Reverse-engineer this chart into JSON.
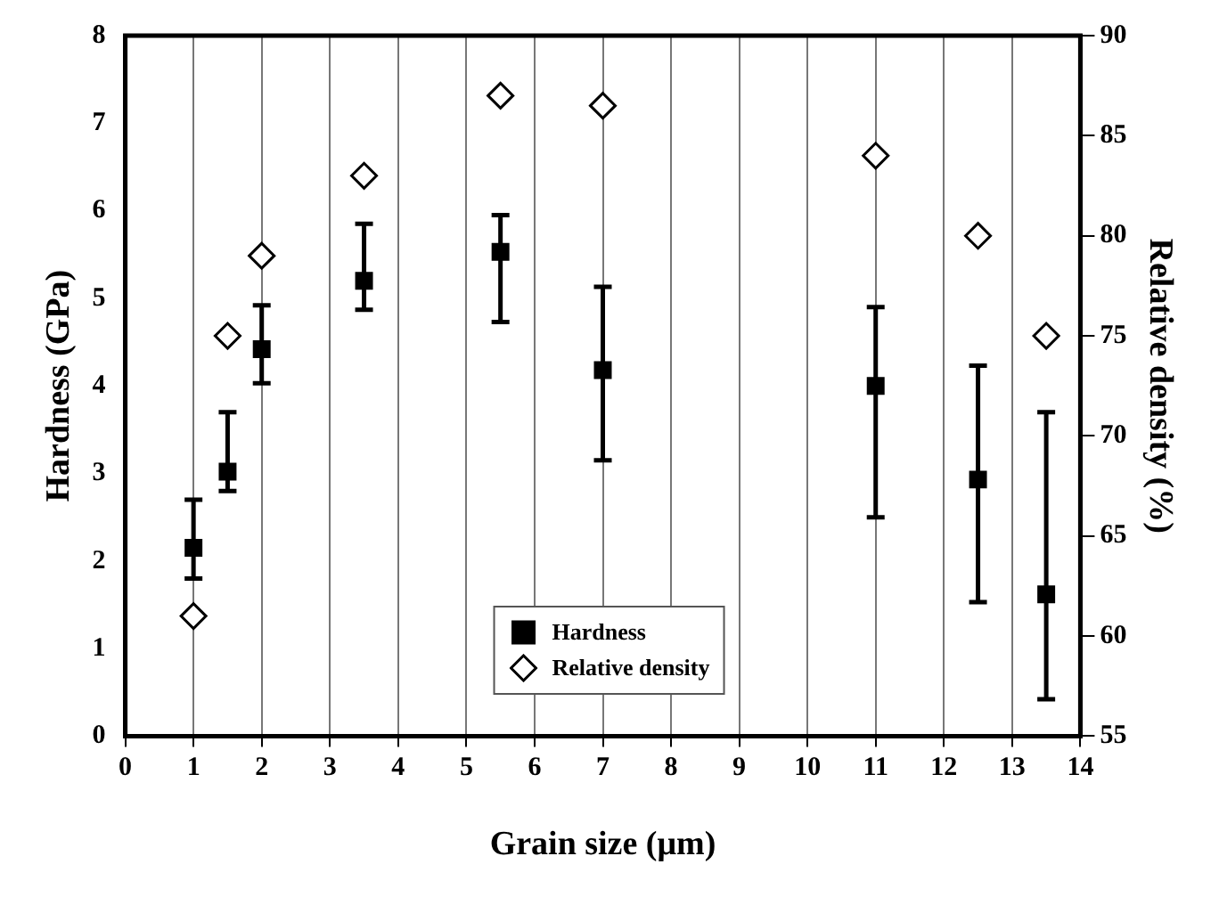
{
  "chart_data": {
    "type": "scatter",
    "xlabel": "Grain size (μm)",
    "ylabel": "Hardness (GPa)",
    "y2label": "Relative density (%)",
    "x": [
      1,
      1.5,
      2,
      3.5,
      5.5,
      7,
      11,
      12.5,
      13.5
    ],
    "series": [
      {
        "name": "Hardness",
        "color": "#000000",
        "marker": "square",
        "values": [
          2.15,
          3.02,
          4.42,
          5.2,
          5.53,
          4.18,
          4.0,
          2.93,
          1.62
        ],
        "errors": [
          [
            1.8,
            2.7
          ],
          [
            2.8,
            3.7
          ],
          [
            4.03,
            4.92
          ],
          [
            4.87,
            5.85
          ],
          [
            4.73,
            5.95
          ],
          [
            3.15,
            5.13
          ],
          [
            2.5,
            4.9
          ],
          [
            1.53,
            4.23
          ],
          [
            0.42,
            3.7
          ]
        ]
      },
      {
        "name": "Relative density",
        "color": "#000000",
        "marker": "diamond",
        "axis": "y2",
        "values": [
          61,
          75,
          79,
          83,
          87,
          86.5,
          84,
          80,
          75
        ]
      }
    ],
    "xlim": [
      0,
      14
    ],
    "xticks": [
      0,
      1,
      2,
      3,
      4,
      5,
      6,
      7,
      8,
      9,
      10,
      11,
      12,
      13,
      14
    ],
    "ylim": [
      0,
      8
    ],
    "yticks": [
      0,
      1,
      2,
      3,
      4,
      5,
      6,
      7,
      8
    ],
    "y2lim": [
      55,
      90
    ],
    "y2ticks": [
      55,
      60,
      65,
      70,
      75,
      80,
      85,
      90
    ],
    "grid": "x",
    "legend": "bottom"
  }
}
